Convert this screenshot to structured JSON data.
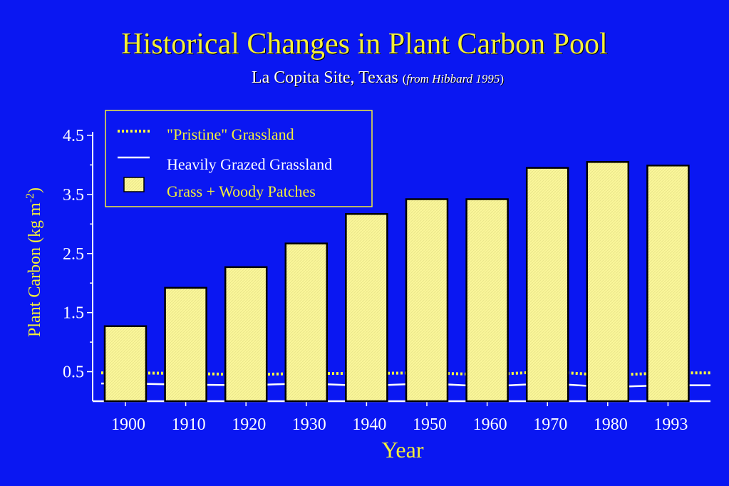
{
  "title": "Historical Changes in Plant Carbon Pool",
  "subtitle": {
    "site": "La Copita Site, Texas",
    "open_paren": "(",
    "source": "from Hibbard 1995",
    "close_paren": ")"
  },
  "colors": {
    "background": "#0a17f2",
    "bar_fill": "#fbf79b",
    "bar_stroke": "#000000",
    "title": "#f3ef3a",
    "pristine_line": "#ffff40",
    "grazed_line": "#ffffff"
  },
  "chart_data": {
    "type": "bar",
    "xlabel": "Year",
    "ylabel": "Plant Carbon (kg m-2)",
    "ylabel_parts": {
      "main": "Plant Carbon (kg m",
      "sup": "-2",
      "end": ")"
    },
    "ylim": [
      0,
      4.5
    ],
    "yticks": [
      "0.5",
      "1.5",
      "2.5",
      "3.5",
      "4.5"
    ],
    "categories": [
      "1900",
      "1910",
      "1920",
      "1930",
      "1940",
      "1950",
      "1960",
      "1970",
      "1980",
      "1993"
    ],
    "series": [
      {
        "name": "Grass + Woody Patches",
        "kind": "bar",
        "values": [
          1.27,
          1.92,
          2.27,
          2.67,
          3.17,
          3.42,
          3.42,
          3.95,
          4.05,
          3.99
        ]
      },
      {
        "name": "\"Pristine\" Grassland",
        "kind": "line-dotted",
        "values": [
          0.48,
          0.47,
          0.45,
          0.47,
          0.47,
          0.48,
          0.45,
          0.5,
          0.44,
          0.48
        ]
      },
      {
        "name": "Heavily Grazed Grassland",
        "kind": "line",
        "values": [
          0.3,
          0.28,
          0.27,
          0.3,
          0.26,
          0.3,
          0.25,
          0.3,
          0.24,
          0.27
        ]
      }
    ],
    "grid": false,
    "legend_position": "top-left"
  },
  "legend": [
    {
      "label": "\"Pristine\" Grassland",
      "symbol": "dotted-line",
      "color": "yellow"
    },
    {
      "label": "Heavily Grazed Grassland",
      "symbol": "solid-line",
      "color": "white"
    },
    {
      "label": "Grass + Woody Patches",
      "symbol": "box",
      "color": "yellow"
    }
  ]
}
